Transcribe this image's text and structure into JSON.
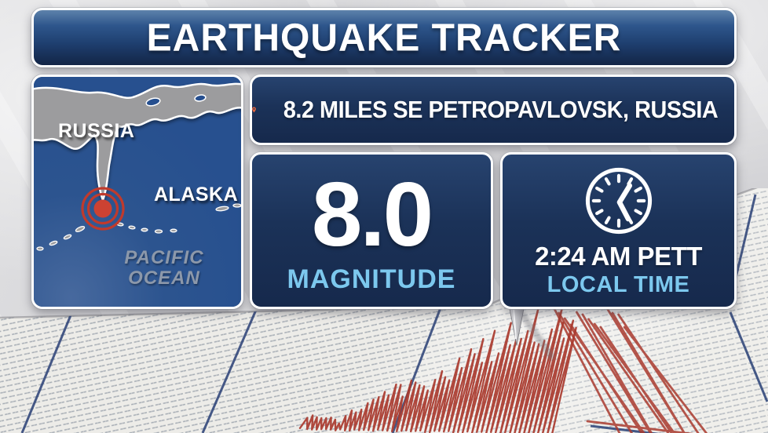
{
  "header": {
    "title": "EARTHQUAKE TRACKER"
  },
  "location_bar": {
    "text": "8.2 MILES SE PETROPAVLOVSK, RUSSIA",
    "pin_icon": "location-pin"
  },
  "magnitude_panel": {
    "value": "8.0",
    "label": "MAGNITUDE"
  },
  "time_panel": {
    "time": "2:24 AM PETT",
    "label": "LOCAL TIME",
    "clock_icon": "clock"
  },
  "map_panel": {
    "labels": {
      "country": "RUSSIA",
      "state": "ALASKA",
      "ocean_line1": "PACIFIC",
      "ocean_line2": "OCEAN"
    },
    "epicenter_marker": "concentric-rings"
  },
  "colors": {
    "panel_navy": "#1c3456",
    "title_blue_top": "#5d82ab",
    "title_blue_bottom": "#132546",
    "accent_light_blue": "#7cc8ee",
    "ocean_blue": "#27508f",
    "land_gray": "#9c9c9e",
    "epicenter_red": "#cc4232",
    "pin_orange": "#e2663f",
    "trace_red": "#a93a2e",
    "seismo_paper": "#edece8",
    "seismo_blue_line": "#33497c"
  }
}
